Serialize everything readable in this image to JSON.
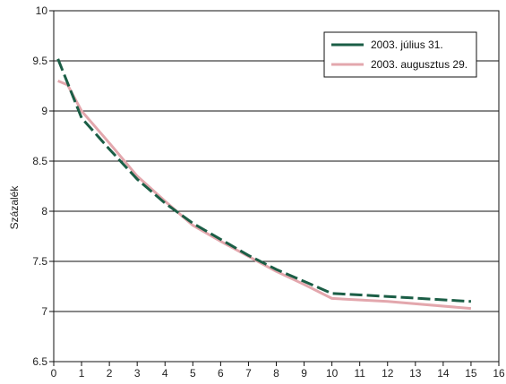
{
  "chart_data": {
    "type": "line",
    "title": "",
    "xlabel": "",
    "ylabel": "Százalék",
    "xlim": [
      0,
      16
    ],
    "ylim": [
      6.5,
      10
    ],
    "xticks": [
      0,
      1,
      2,
      3,
      4,
      5,
      6,
      7,
      8,
      9,
      10,
      11,
      12,
      13,
      14,
      15,
      16
    ],
    "yticks": [
      6.5,
      7,
      7.5,
      8,
      8.5,
      9,
      9.5,
      10
    ],
    "ytick_labels": [
      "6.5",
      "7",
      "7.5",
      "8",
      "8.5",
      "9",
      "9.5",
      "10"
    ],
    "grid": "horizontal",
    "legend_position": "top-right",
    "series": [
      {
        "name": "2003. július 31.",
        "color": "#1b5e46",
        "style": "dashed",
        "x": [
          0.15,
          1,
          2,
          3,
          4,
          5,
          6,
          7,
          8,
          9,
          10,
          12,
          15
        ],
        "y": [
          9.52,
          8.93,
          8.62,
          8.32,
          8.08,
          7.88,
          7.72,
          7.56,
          7.42,
          7.3,
          7.18,
          7.15,
          7.1
        ]
      },
      {
        "name": "2003. augusztus 29.",
        "color": "#e3a7ad",
        "style": "solid",
        "x": [
          0.15,
          0.5,
          1,
          2,
          3,
          4,
          5,
          6,
          7,
          8,
          9,
          10,
          12,
          15
        ],
        "y": [
          9.3,
          9.26,
          9.0,
          8.68,
          8.35,
          8.1,
          7.86,
          7.7,
          7.55,
          7.4,
          7.27,
          7.13,
          7.1,
          7.03
        ]
      }
    ]
  }
}
